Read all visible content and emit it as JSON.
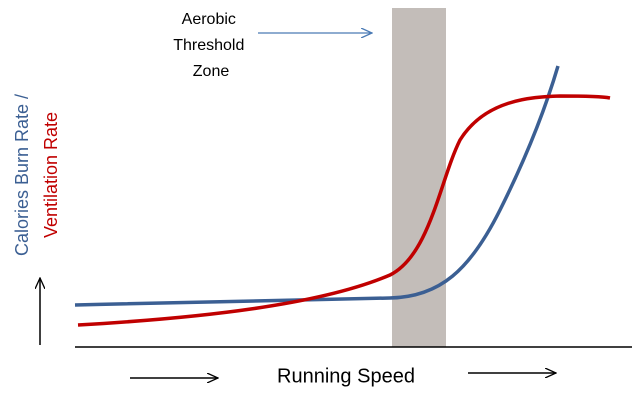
{
  "annotation": {
    "lines": [
      "Aerobic",
      "Threshold",
      "Zone"
    ]
  },
  "y_axis_label": {
    "lines": [
      "Calories Burn Rate /",
      "Ventilation Rate"
    ]
  },
  "x_axis_label": "Running Speed"
}
